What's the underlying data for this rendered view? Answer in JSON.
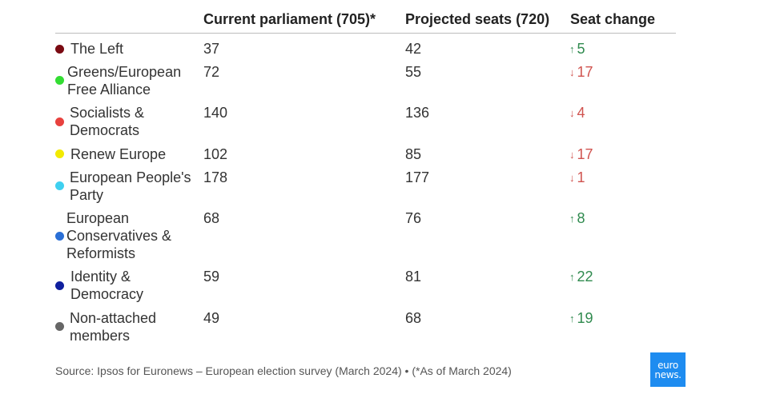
{
  "chart_data": {
    "type": "table",
    "columns": [
      "",
      "Current parliament (705)*",
      "Projected seats (720)",
      "Seat change"
    ],
    "rows": [
      {
        "party": "The Left",
        "color": "#7a0a12",
        "current": "37",
        "projected": "42",
        "direction": "up",
        "change": "5"
      },
      {
        "party": "Greens/European Free Alliance",
        "color": "#33dd33",
        "current": "72",
        "projected": "55",
        "direction": "down",
        "change": "17"
      },
      {
        "party": "Socialists & Democrats",
        "color": "#e8413e",
        "current": "140",
        "projected": "136",
        "direction": "down",
        "change": "4"
      },
      {
        "party": "Renew Europe",
        "color": "#f2ea00",
        "current": "102",
        "projected": "85",
        "direction": "down",
        "change": "17"
      },
      {
        "party": "European People's Party",
        "color": "#3fd0f0",
        "current": "178",
        "projected": "177",
        "direction": "down",
        "change": "1"
      },
      {
        "party": "European Conservatives & Reformists",
        "color": "#2a6fd6",
        "current": "68",
        "projected": "76",
        "direction": "up",
        "change": "8"
      },
      {
        "party": "Identity & Democracy",
        "color": "#0f1f9e",
        "current": "59",
        "projected": "81",
        "direction": "up",
        "change": "22"
      },
      {
        "party": "Non-attached members",
        "color": "#666666",
        "current": "49",
        "projected": "68",
        "direction": "up",
        "change": "19"
      }
    ]
  },
  "colors": {
    "up": "#2f8a4e",
    "down": "#d0534f"
  },
  "source": "Source: Ipsos for Euronews – European election survey (March 2024) • (*As of March 2024)",
  "logo": {
    "line1": "euro",
    "line2": "news."
  }
}
